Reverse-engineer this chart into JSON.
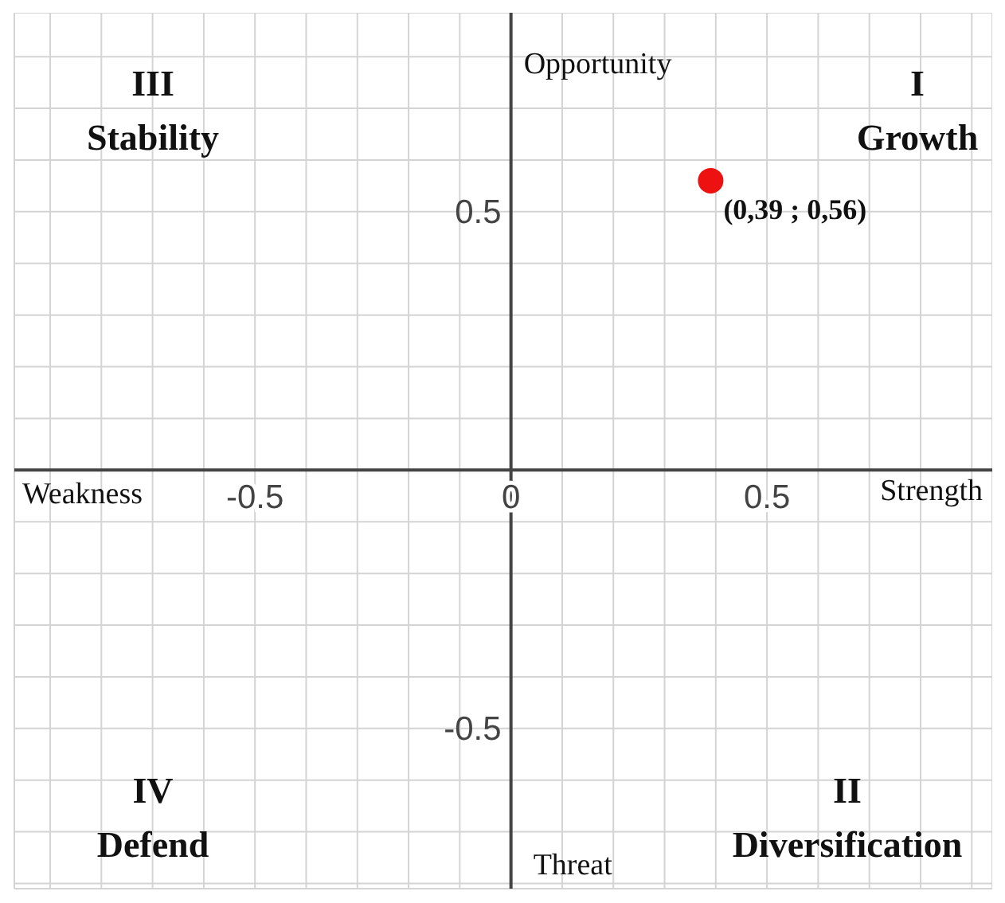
{
  "chart_data": {
    "type": "scatter",
    "series": [
      {
        "color": "#ee1111",
        "values": [
          0.56
        ],
        "x": [
          0.39
        ]
      }
    ],
    "xlim": [
      -0.97,
      0.94
    ],
    "ylim": [
      -0.81,
      0.885
    ],
    "xticks": [
      {
        "value": -0.9,
        "label": null
      },
      {
        "value": -0.8,
        "label": null
      },
      {
        "value": -0.7,
        "label": null
      },
      {
        "value": -0.6,
        "label": null
      },
      -0.5,
      {
        "value": -0.4,
        "label": null
      },
      {
        "value": -0.3,
        "label": null
      },
      {
        "value": -0.2,
        "label": null
      },
      {
        "value": -0.1,
        "label": null
      },
      0,
      {
        "value": 0.1,
        "label": null
      },
      {
        "value": 0.2,
        "label": null
      },
      {
        "value": 0.3,
        "label": null
      },
      {
        "value": 0.4,
        "label": null
      },
      0.5,
      {
        "value": 0.6,
        "label": null
      },
      {
        "value": 0.7,
        "label": null
      },
      {
        "value": 0.8,
        "label": null
      },
      {
        "value": 0.9,
        "label": null
      }
    ],
    "yticks": [
      {
        "value": -0.8,
        "label": null
      },
      {
        "value": -0.7,
        "label": null
      },
      {
        "value": -0.6,
        "label": null
      },
      -0.5,
      {
        "value": -0.4,
        "label": null
      },
      {
        "value": -0.3,
        "label": null
      },
      {
        "value": -0.2,
        "label": null
      },
      {
        "value": -0.1,
        "label": null
      },
      {
        "value": 0,
        "label": null
      },
      {
        "value": 0.1,
        "label": null
      },
      {
        "value": 0.2,
        "label": null
      },
      {
        "value": 0.3,
        "label": null
      },
      {
        "value": 0.4,
        "label": null
      },
      0.5,
      {
        "value": 0.6,
        "label": null
      },
      {
        "value": 0.7,
        "label": null
      },
      {
        "value": 0.8,
        "label": null
      }
    ],
    "grid": true,
    "marker": "circle",
    "annotations": [
      "Opportunity",
      "Threat",
      "Weakness",
      "Strength",
      "III\nStability",
      "I\nGrowth",
      "IV\nDefend",
      "II\nDiversification",
      {
        "text": "(0,39 ; 0,56)",
        "x": 0.39,
        "y": 0.56
      }
    ]
  }
}
